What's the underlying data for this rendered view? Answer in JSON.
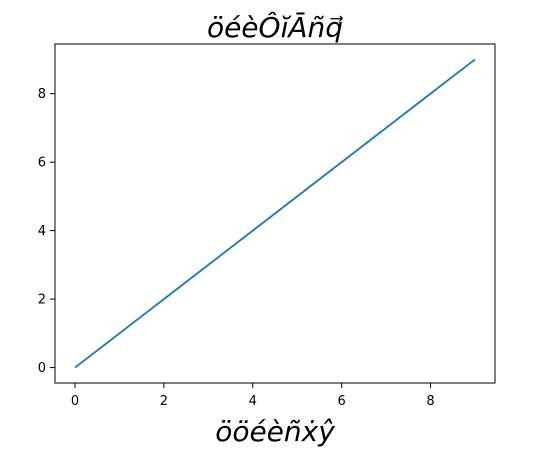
{
  "chart_data": {
    "type": "line",
    "title": "öéèÔĭĀñq⃗",
    "xlabel": "öӧéèñẋŷ",
    "ylabel": "",
    "xlim": [
      -0.45,
      9.45
    ],
    "ylim": [
      -0.45,
      9.45
    ],
    "xticks": [
      0,
      2,
      4,
      6,
      8
    ],
    "yticks": [
      0,
      2,
      4,
      6,
      8
    ],
    "grid": false,
    "series": [
      {
        "color": "#1f77b4",
        "x": [
          0,
          1,
          2,
          3,
          4,
          5,
          6,
          7,
          8,
          9
        ],
        "y": [
          0,
          1,
          2,
          3,
          4,
          5,
          6,
          7,
          8,
          9
        ]
      }
    ]
  }
}
